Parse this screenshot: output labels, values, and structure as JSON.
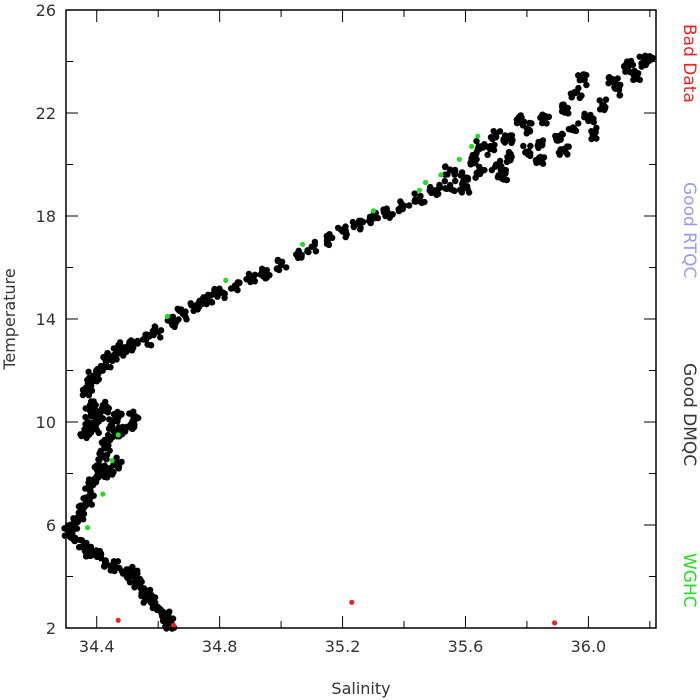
{
  "chart_data": {
    "type": "scatter",
    "xlabel": "Salinity",
    "ylabel": "Temperature",
    "xlim": [
      34.3,
      36.22
    ],
    "ylim": [
      2,
      26
    ],
    "x_ticks": [
      "34.4",
      "34.8",
      "35.2",
      "35.6",
      "36.0"
    ],
    "x_tick_values": [
      34.4,
      34.8,
      35.2,
      35.6,
      36.0
    ],
    "y_ticks": [
      "2",
      "6",
      "10",
      "14",
      "18",
      "22",
      "26"
    ],
    "y_tick_values": [
      2,
      6,
      10,
      14,
      18,
      22,
      26
    ],
    "legend_placement": "right (vertical labels)",
    "series": [
      {
        "name": "Good DMQC",
        "color": "#000000",
        "points": [
          [
            34.31,
            5.7
          ],
          [
            34.32,
            6.0
          ],
          [
            34.33,
            5.5
          ],
          [
            34.34,
            6.3
          ],
          [
            34.35,
            6.6
          ],
          [
            34.36,
            5.2
          ],
          [
            34.37,
            6.9
          ],
          [
            34.38,
            5.0
          ],
          [
            34.38,
            7.3
          ],
          [
            34.39,
            7.6
          ],
          [
            34.4,
            4.8
          ],
          [
            34.4,
            7.9
          ],
          [
            34.41,
            8.3
          ],
          [
            34.42,
            8.7
          ],
          [
            34.43,
            4.6
          ],
          [
            34.43,
            9.1
          ],
          [
            34.44,
            8.0
          ],
          [
            34.45,
            9.4
          ],
          [
            34.46,
            4.4
          ],
          [
            34.47,
            8.4
          ],
          [
            34.5,
            4.2
          ],
          [
            34.52,
            4.0
          ],
          [
            34.54,
            3.7
          ],
          [
            34.56,
            3.4
          ],
          [
            34.58,
            3.1
          ],
          [
            34.6,
            2.8
          ],
          [
            34.62,
            2.5
          ],
          [
            34.63,
            2.3
          ],
          [
            34.64,
            2.2
          ],
          [
            34.57,
            3.2
          ],
          [
            34.36,
            9.6
          ],
          [
            34.37,
            10.0
          ],
          [
            34.38,
            10.4
          ],
          [
            34.39,
            10.8
          ],
          [
            34.37,
            11.2
          ],
          [
            34.38,
            11.5
          ],
          [
            34.39,
            9.8
          ],
          [
            34.41,
            10.3
          ],
          [
            34.43,
            10.6
          ],
          [
            34.45,
            9.9
          ],
          [
            34.47,
            10.2
          ],
          [
            34.48,
            9.6
          ],
          [
            34.51,
            9.9
          ],
          [
            34.52,
            10.2
          ],
          [
            34.39,
            11.8
          ],
          [
            34.41,
            12.0
          ],
          [
            34.43,
            12.3
          ],
          [
            34.45,
            12.5
          ],
          [
            34.47,
            12.8
          ],
          [
            34.49,
            12.9
          ],
          [
            34.52,
            13.0
          ],
          [
            34.56,
            13.2
          ],
          [
            34.6,
            13.5
          ],
          [
            34.64,
            13.9
          ],
          [
            34.68,
            14.2
          ],
          [
            34.72,
            14.5
          ],
          [
            34.76,
            14.8
          ],
          [
            34.8,
            15.0
          ],
          [
            34.85,
            15.3
          ],
          [
            34.9,
            15.6
          ],
          [
            34.95,
            15.8
          ],
          [
            35.0,
            16.1
          ],
          [
            35.05,
            16.5
          ],
          [
            35.1,
            16.8
          ],
          [
            35.15,
            17.1
          ],
          [
            35.2,
            17.4
          ],
          [
            35.25,
            17.7
          ],
          [
            35.3,
            17.9
          ],
          [
            35.35,
            18.1
          ],
          [
            35.4,
            18.4
          ],
          [
            35.45,
            18.7
          ],
          [
            35.5,
            19.0
          ],
          [
            35.55,
            19.2
          ],
          [
            35.6,
            19.5
          ],
          [
            35.65,
            19.7
          ],
          [
            35.7,
            20.0
          ],
          [
            35.75,
            20.3
          ],
          [
            35.8,
            20.5
          ],
          [
            35.85,
            20.8
          ],
          [
            35.9,
            21.1
          ],
          [
            35.95,
            21.4
          ],
          [
            36.0,
            21.8
          ],
          [
            36.05,
            22.3
          ],
          [
            36.1,
            22.9
          ],
          [
            36.15,
            23.5
          ],
          [
            36.2,
            24.2
          ],
          [
            35.55,
            19.8
          ],
          [
            35.62,
            20.2
          ],
          [
            35.68,
            20.6
          ],
          [
            35.74,
            21.0
          ],
          [
            35.8,
            21.4
          ],
          [
            35.86,
            21.8
          ],
          [
            35.92,
            22.2
          ],
          [
            35.96,
            22.8
          ],
          [
            35.98,
            23.3
          ],
          [
            36.08,
            23.2
          ],
          [
            36.13,
            23.8
          ],
          [
            36.18,
            24.0
          ],
          [
            35.6,
            19.1
          ],
          [
            35.72,
            19.6
          ],
          [
            35.84,
            20.1
          ],
          [
            35.92,
            20.6
          ],
          [
            36.02,
            21.2
          ],
          [
            35.65,
            20.7
          ],
          [
            35.7,
            21.2
          ],
          [
            35.78,
            21.7
          ]
        ]
      },
      {
        "name": "WGHC",
        "color": "#22dd22",
        "points": [
          [
            34.37,
            5.9
          ],
          [
            34.42,
            7.2
          ],
          [
            34.45,
            8.5
          ],
          [
            34.47,
            9.5
          ],
          [
            34.63,
            14.1
          ],
          [
            34.82,
            15.5
          ],
          [
            35.07,
            16.9
          ],
          [
            35.3,
            18.2
          ],
          [
            35.45,
            19.0
          ],
          [
            35.52,
            19.6
          ],
          [
            35.58,
            20.2
          ],
          [
            35.62,
            20.7
          ],
          [
            35.64,
            21.1
          ],
          [
            35.47,
            19.3
          ]
        ]
      },
      {
        "name": "Good RTQC",
        "color": "#9999ee",
        "points": []
      },
      {
        "name": "Bad Data",
        "color": "#ee2222",
        "points": [
          [
            34.47,
            2.3
          ],
          [
            34.65,
            2.1
          ],
          [
            35.23,
            3.0
          ],
          [
            35.89,
            2.2
          ]
        ]
      }
    ],
    "legend_order": [
      "Bad Data",
      "Good RTQC",
      "Good DMQC",
      "WGHC"
    ]
  }
}
